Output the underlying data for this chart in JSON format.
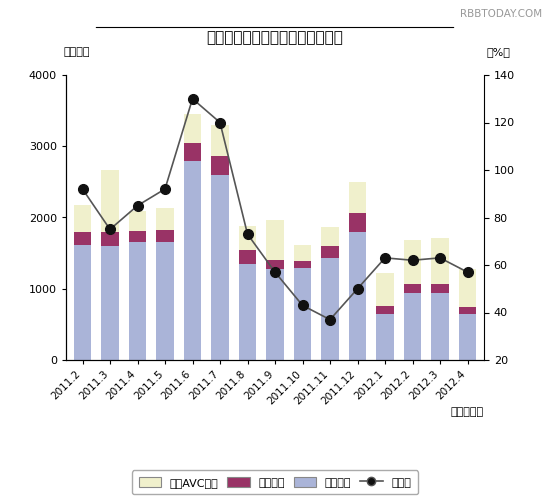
{
  "title": "民生用電子機器国内出荷金額推移",
  "ylabel_left": "〈億円〉",
  "ylabel_right": "（%）",
  "xlabel": "（年・月）",
  "watermark": "RBBTODAY.COM",
  "categories": [
    "2011.2",
    "2011.3",
    "2011.4",
    "2011.5",
    "2011.6",
    "2011.7",
    "2011.8",
    "2011.9",
    "2011.10",
    "2011.11",
    "2011.12",
    "2012.1",
    "2012.2",
    "2012.3",
    "2012.4"
  ],
  "eizo": [
    1620,
    1600,
    1650,
    1650,
    2800,
    2600,
    1350,
    1280,
    1290,
    1430,
    1800,
    640,
    940,
    940,
    640
  ],
  "onsei": [
    180,
    200,
    160,
    170,
    250,
    270,
    190,
    130,
    100,
    170,
    270,
    120,
    125,
    130,
    110
  ],
  "car_avc": [
    380,
    860,
    280,
    320,
    400,
    430,
    340,
    560,
    230,
    260,
    430,
    460,
    620,
    640,
    530
  ],
  "yoy": [
    92,
    75,
    85,
    92,
    130,
    120,
    73,
    57,
    43,
    37,
    50,
    63,
    62,
    63,
    57
  ],
  "ylim_left": [
    0,
    4000
  ],
  "ylim_right": [
    20,
    140
  ],
  "yticks_left": [
    0,
    1000,
    2000,
    3000,
    4000
  ],
  "yticks_right": [
    20,
    40,
    60,
    80,
    100,
    120,
    140
  ],
  "color_eizo": "#aab4d8",
  "color_onsei": "#993366",
  "color_car": "#f0f0cc",
  "color_yoy_line": "#555555",
  "color_yoy_marker": "#111111",
  "legend_labels": [
    "カーAVC機器",
    "音声機器",
    "映像機器",
    "前年比"
  ],
  "background_color": "#ffffff",
  "plot_bg_color": "#ffffff"
}
